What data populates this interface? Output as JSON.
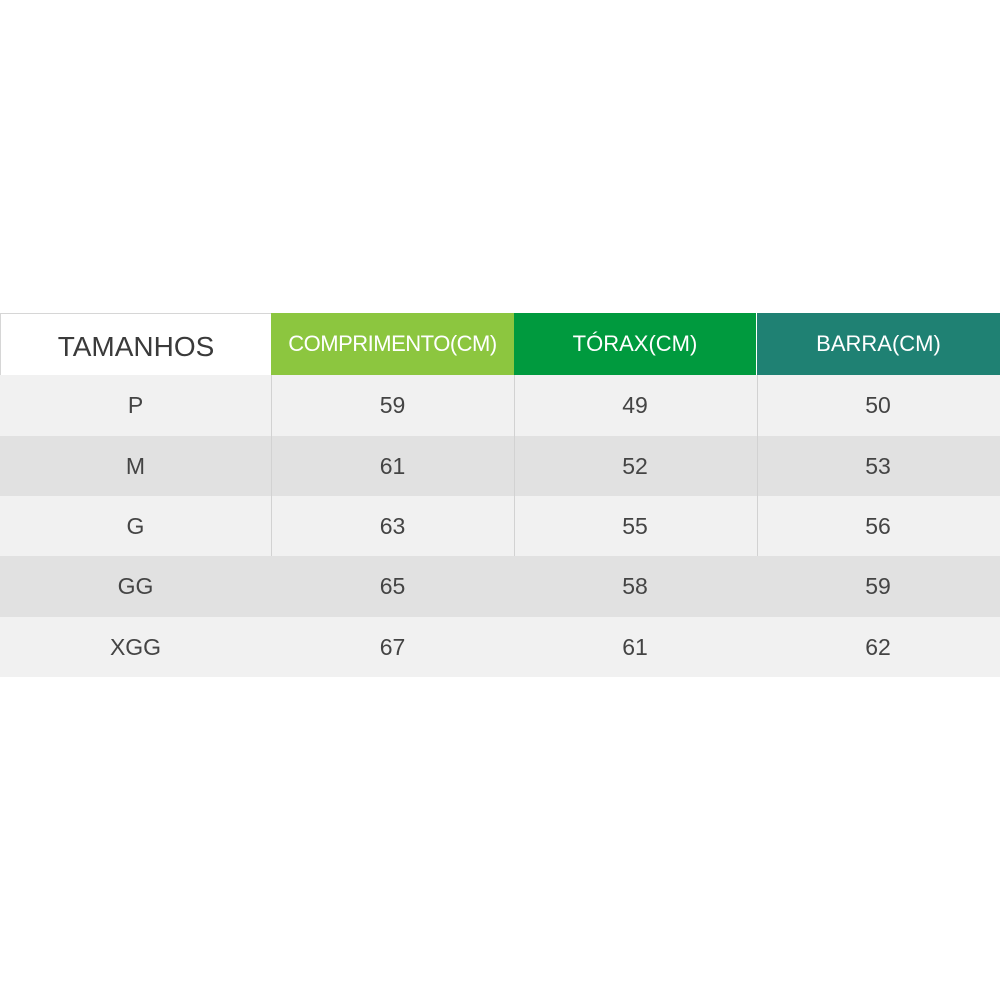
{
  "colors": {
    "header_comprimento": "#8cc63f",
    "header_torax": "#009a3e",
    "header_barra": "#1f8173",
    "row_light": "#f1f1f1",
    "row_dark": "#e1e1e1",
    "text_dark": "#3a3a3a",
    "text_body": "#444444"
  },
  "table": {
    "headers": [
      "TAMANHOS",
      "COMPRIMENTO(CM)",
      "TÓRAX(CM)",
      "BARRA(CM)"
    ],
    "rows": [
      [
        "P",
        "59",
        "49",
        "50"
      ],
      [
        "M",
        "61",
        "52",
        "53"
      ],
      [
        "G",
        "63",
        "55",
        "56"
      ],
      [
        "GG",
        "65",
        "58",
        "59"
      ],
      [
        "XGG",
        "67",
        "61",
        "62"
      ]
    ]
  }
}
